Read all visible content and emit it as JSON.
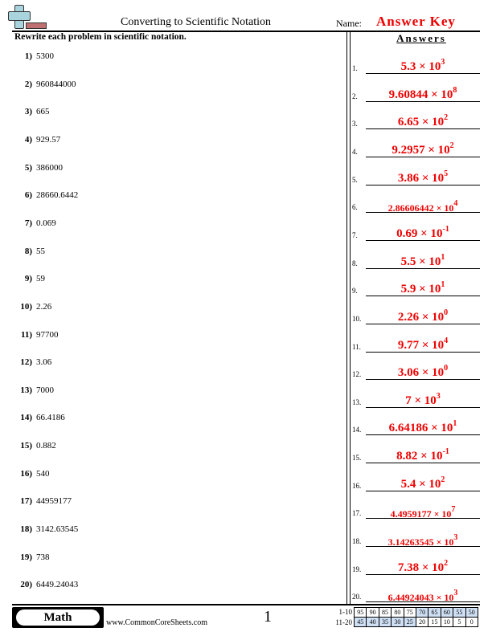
{
  "header": {
    "title": "Converting to Scientific Notation",
    "name_label": "Name:",
    "answer_key": "Answer Key"
  },
  "instructions": "Rewrite each problem in scientific notation.",
  "answers_heading": "Answers",
  "problems": [
    "5300",
    "960844000",
    "665",
    "929.57",
    "386000",
    "28660.6442",
    "0.069",
    "55",
    "59",
    "2.26",
    "97700",
    "3.06",
    "7000",
    "66.4186",
    "0.882",
    "540",
    "44959177",
    "3142.63545",
    "738",
    "6449.24043"
  ],
  "answers": [
    {
      "m": "5.3",
      "e": "3"
    },
    {
      "m": "9.60844",
      "e": "8"
    },
    {
      "m": "6.65",
      "e": "2"
    },
    {
      "m": "9.2957",
      "e": "2"
    },
    {
      "m": "3.86",
      "e": "5"
    },
    {
      "m": "2.86606442",
      "e": "4"
    },
    {
      "m": "0.69",
      "e": "-1"
    },
    {
      "m": "5.5",
      "e": "1"
    },
    {
      "m": "5.9",
      "e": "1"
    },
    {
      "m": "2.26",
      "e": "0"
    },
    {
      "m": "9.77",
      "e": "4"
    },
    {
      "m": "3.06",
      "e": "0"
    },
    {
      "m": "7",
      "e": "3"
    },
    {
      "m": "6.64186",
      "e": "1"
    },
    {
      "m": "8.82",
      "e": "-1"
    },
    {
      "m": "5.4",
      "e": "2"
    },
    {
      "m": "4.4959177",
      "e": "7"
    },
    {
      "m": "3.14263545",
      "e": "3"
    },
    {
      "m": "7.38",
      "e": "2"
    },
    {
      "m": "6.44924043",
      "e": "3"
    }
  ],
  "footer": {
    "subject": "Math",
    "site": "www.CommonCoreSheets.com",
    "page": "1",
    "score_rows": [
      {
        "label": "1-10",
        "values": [
          "95",
          "90",
          "85",
          "80",
          "75",
          "70",
          "65",
          "60",
          "55",
          "50"
        ]
      },
      {
        "label": "11-20",
        "values": [
          "45",
          "40",
          "35",
          "30",
          "25",
          "20",
          "15",
          "10",
          "5",
          "0"
        ]
      }
    ]
  },
  "colors": {
    "answer": "#ee0000",
    "score_shade": "#cfe0f5"
  }
}
